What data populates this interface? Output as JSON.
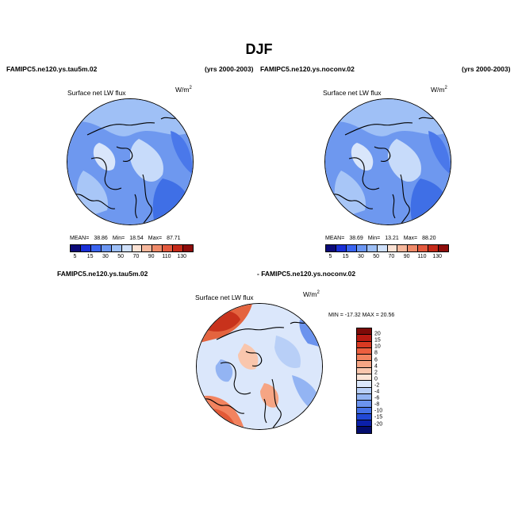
{
  "title": "DJF",
  "panels": [
    {
      "case": "FAMIPC5.ne120.ys.tau5m.02",
      "years": "(yrs 2000-2003)",
      "variable": "Surface net LW flux",
      "units_base": "W/m",
      "units_exp": "2",
      "stats": {
        "mean_label": "MEAN=",
        "mean": "38.86",
        "min_label": "Min=",
        "min": "18.54",
        "max_label": "Max=",
        "max": "87.71"
      }
    },
    {
      "case": "FAMIPC5.ne120.ys.noconv.02",
      "years": "(yrs 2000-2003)",
      "variable": "Surface net LW flux",
      "units_base": "W/m",
      "units_exp": "2",
      "stats": {
        "mean_label": "MEAN=",
        "mean": "38.69",
        "min_label": "Min=",
        "min": "13.21",
        "max_label": "Max=",
        "max": "88.20"
      }
    }
  ],
  "diff": {
    "case_a": "FAMIPC5.ne120.ys.tau5m.02",
    "case_b": "- FAMIPC5.ne120.ys.noconv.02",
    "variable": "Surface net LW flux",
    "units_base": "W/m",
    "units_exp": "2",
    "minmax": "MIN = -17.32  MAX =   20.56"
  },
  "colorbar_main": {
    "labels": [
      "5",
      "15",
      "30",
      "50",
      "70",
      "90",
      "110",
      "130"
    ],
    "colors": [
      "#0c0a78",
      "#1a2fd6",
      "#3a64f0",
      "#6b96f2",
      "#9dbff6",
      "#cfe0fa",
      "#fbe2d4",
      "#f6b79c",
      "#ef8a69",
      "#e45a3e",
      "#c52a19",
      "#8e0d0b"
    ]
  },
  "colorbar_diff": {
    "labels": [
      "20",
      "15",
      "10",
      "8",
      "6",
      "4",
      "2",
      "0",
      "-2",
      "-4",
      "-6",
      "-8",
      "-10",
      "-15",
      "-20"
    ],
    "colors": [
      "#7e0a08",
      "#b81a12",
      "#d93a22",
      "#ec5f3f",
      "#f2835f",
      "#f6a584",
      "#f9c6ad",
      "#fce4d6",
      "#dbe7fb",
      "#b8cff7",
      "#93b4f3",
      "#6b93ee",
      "#4470e6",
      "#2148d6",
      "#0b20aa",
      "#040d6e"
    ]
  }
}
